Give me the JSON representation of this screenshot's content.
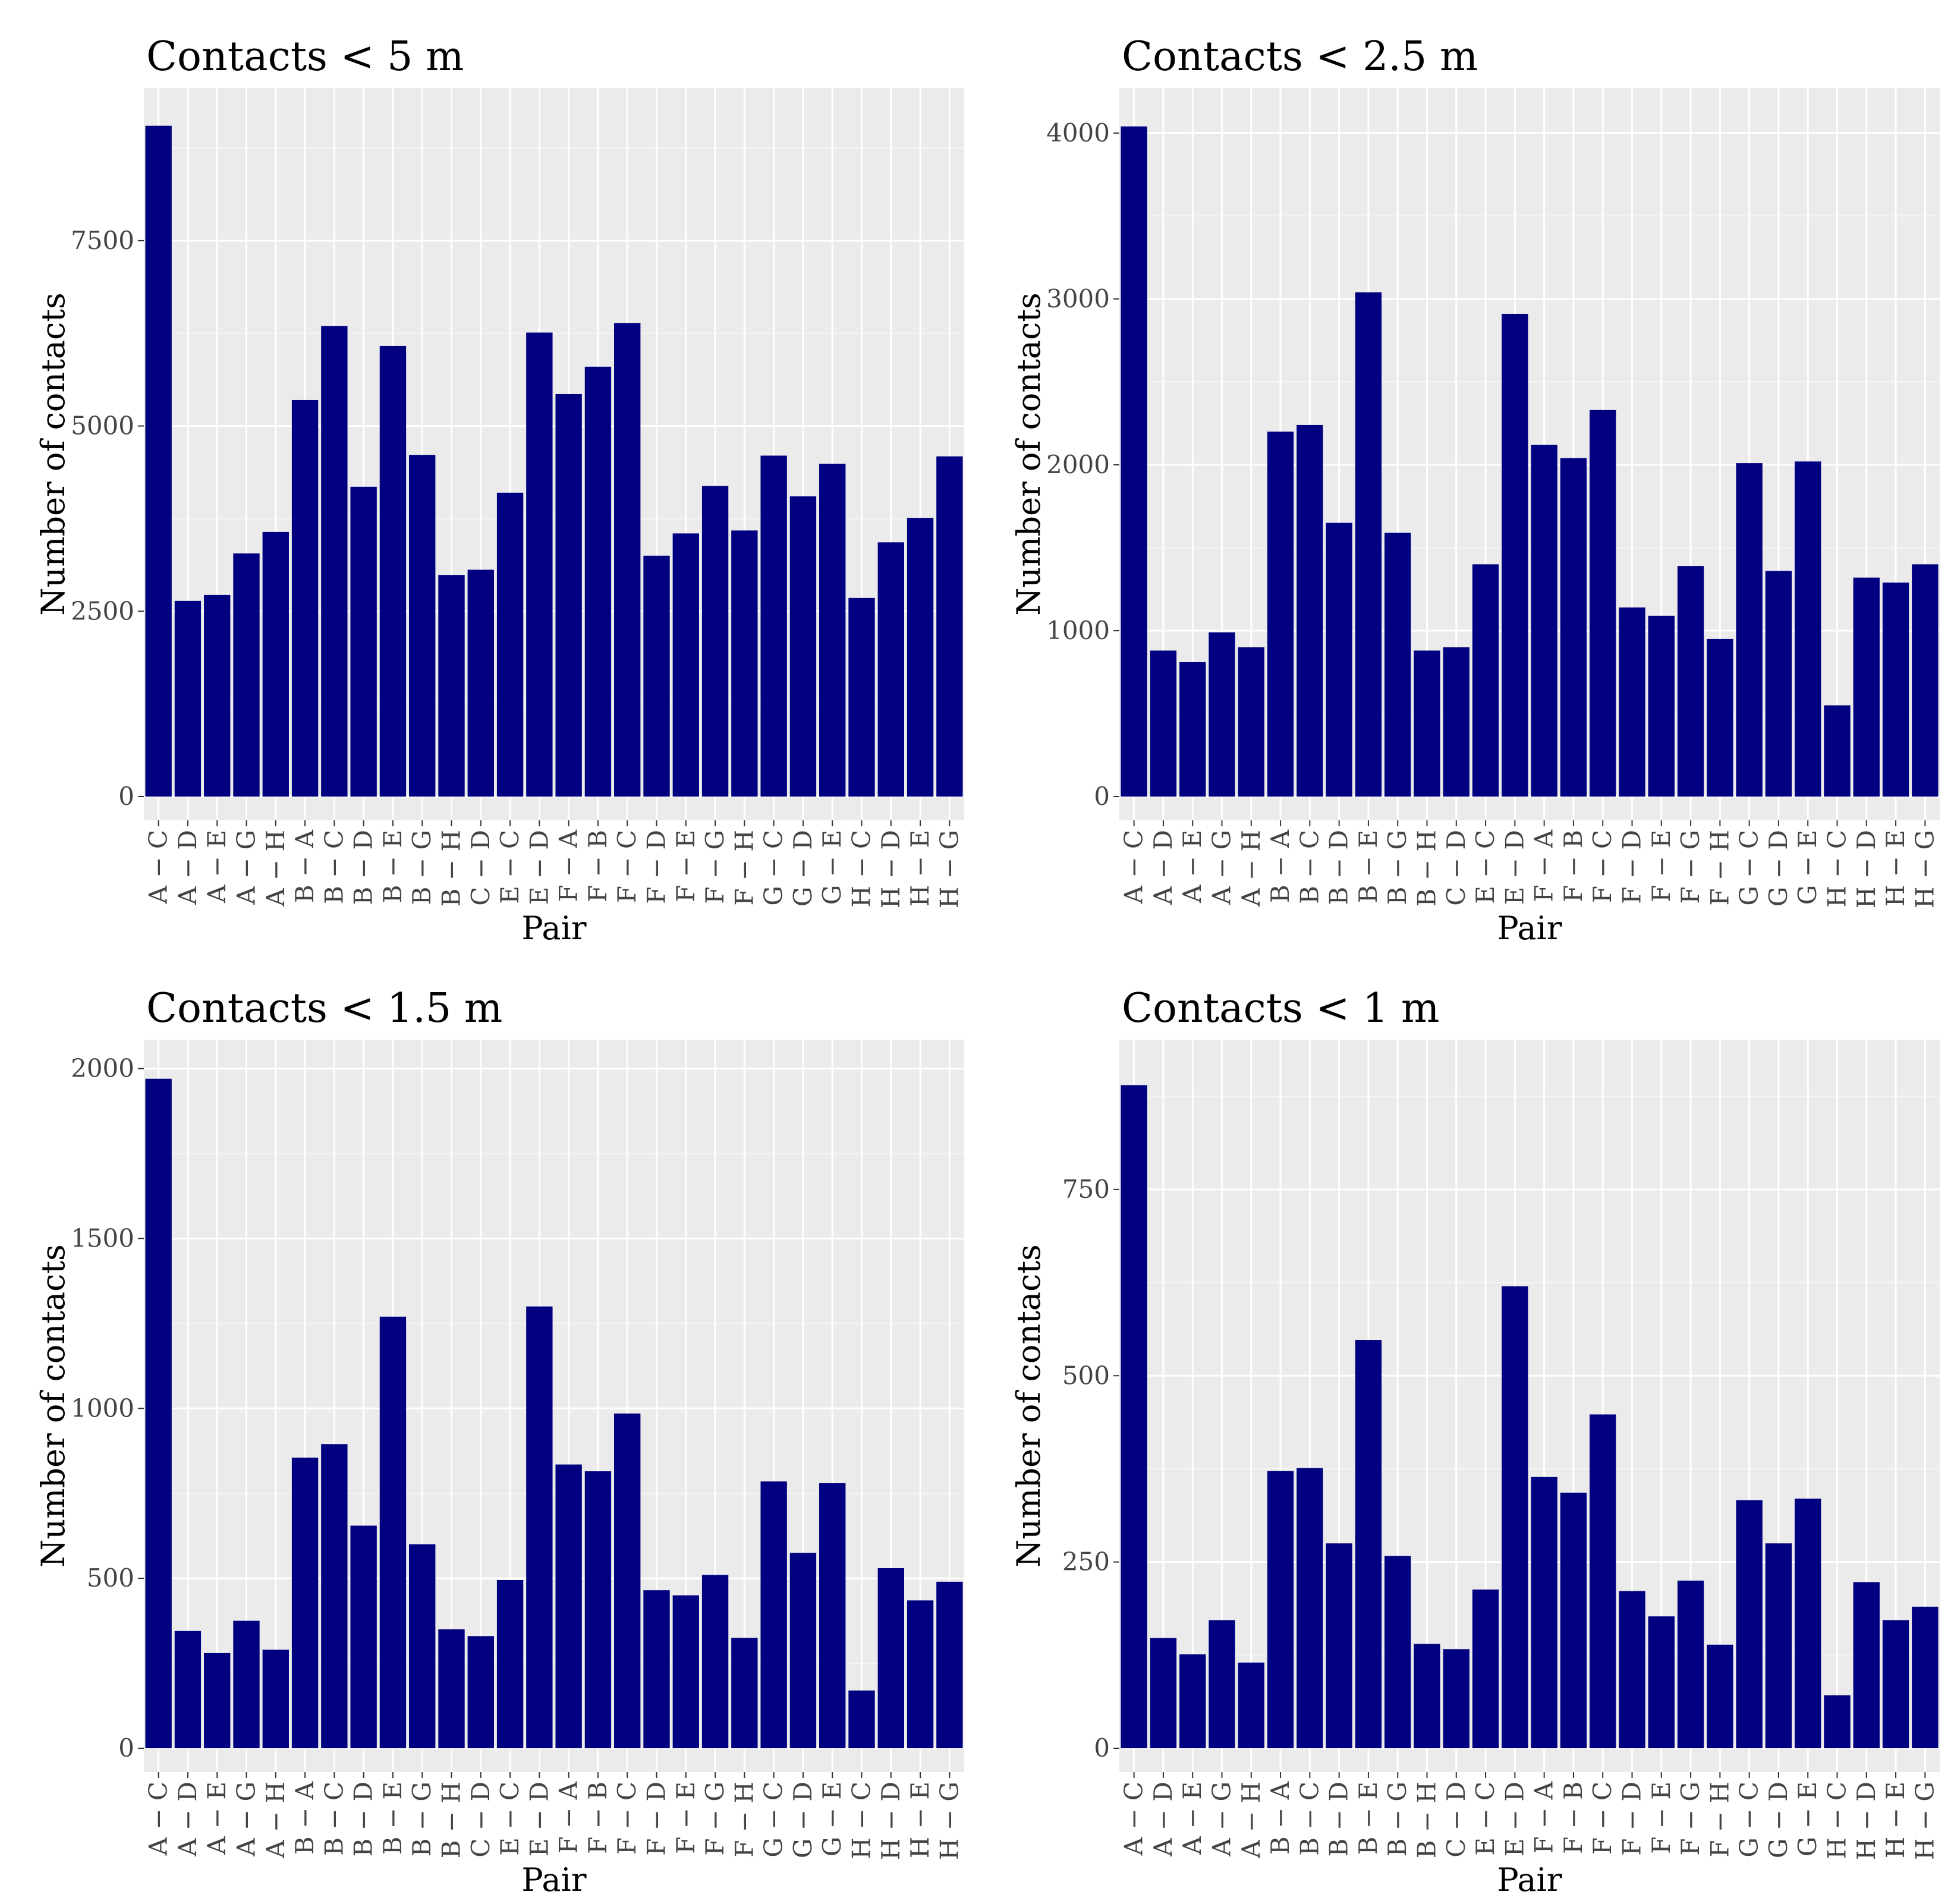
{
  "colors": {
    "bar": "#000080",
    "panel_background": "#EBEBEB",
    "grid_major": "#FFFFFF",
    "grid_minor": "#F5F5F5"
  },
  "chart_data": [
    {
      "type": "bar",
      "title": "Contacts < 5 m",
      "xlabel": "Pair",
      "ylabel": "Number of contacts",
      "ylim": [
        0,
        9400
      ],
      "yticks": [
        0,
        2500,
        5000,
        7500
      ],
      "ytick_labels": [
        "0",
        "2500",
        "5000",
        "7500"
      ],
      "categories": [
        "A − C",
        "A − D",
        "A − E",
        "A − G",
        "A − H",
        "B − A",
        "B − C",
        "B − D",
        "B − E",
        "B − G",
        "B − H",
        "C − D",
        "E − C",
        "E − D",
        "F − A",
        "F − B",
        "F − C",
        "F − D",
        "F − E",
        "F − G",
        "F − H",
        "G − C",
        "G − D",
        "G − E",
        "H − C",
        "H − D",
        "H − E",
        "H − G"
      ],
      "values": [
        9050,
        2640,
        2720,
        3280,
        3570,
        5350,
        6350,
        4180,
        6080,
        4610,
        2990,
        3060,
        4100,
        6260,
        5430,
        5800,
        6390,
        3250,
        3550,
        4190,
        3590,
        4600,
        4050,
        4490,
        2680,
        3430,
        3760,
        4590
      ]
    },
    {
      "type": "bar",
      "title": "Contacts < 2.5 m",
      "xlabel": "Pair",
      "ylabel": "Number of contacts",
      "ylim": [
        0,
        4200
      ],
      "yticks": [
        0,
        1000,
        2000,
        3000,
        4000
      ],
      "ytick_labels": [
        "0",
        "1000",
        "2000",
        "3000",
        "4000"
      ],
      "categories": [
        "A − C",
        "A − D",
        "A − E",
        "A − G",
        "A − H",
        "B − A",
        "B − C",
        "B − D",
        "B − E",
        "B − G",
        "B − H",
        "C − D",
        "E − C",
        "E − D",
        "F − A",
        "F − B",
        "F − C",
        "F − D",
        "F − E",
        "F − G",
        "F − H",
        "G − C",
        "G − D",
        "G − E",
        "H − C",
        "H − D",
        "H − E",
        "H − G"
      ],
      "values": [
        4040,
        880,
        810,
        990,
        900,
        2200,
        2240,
        1650,
        3040,
        1590,
        880,
        900,
        1400,
        2910,
        2120,
        2040,
        2330,
        1140,
        1090,
        1390,
        950,
        2010,
        1360,
        2020,
        550,
        1320,
        1290,
        1400
      ]
    },
    {
      "type": "bar",
      "title": "Contacts < 1.5 m",
      "xlabel": "Pair",
      "ylabel": "Number of contacts",
      "ylim": [
        0,
        2050
      ],
      "yticks": [
        0,
        500,
        1000,
        1500,
        2000
      ],
      "ytick_labels": [
        "0",
        "500",
        "1000",
        "1500",
        "2000"
      ],
      "categories": [
        "A − C",
        "A − D",
        "A − E",
        "A − G",
        "A − H",
        "B − A",
        "B − C",
        "B − D",
        "B − E",
        "B − G",
        "B − H",
        "C − D",
        "E − C",
        "E − D",
        "F − A",
        "F − B",
        "F − C",
        "F − D",
        "F − E",
        "F − G",
        "F − H",
        "G − C",
        "G − D",
        "G − E",
        "H − C",
        "H − D",
        "H − E",
        "H − G"
      ],
      "values": [
        1970,
        345,
        280,
        375,
        290,
        855,
        895,
        655,
        1270,
        600,
        350,
        330,
        495,
        1300,
        835,
        815,
        985,
        465,
        450,
        510,
        325,
        785,
        575,
        780,
        170,
        530,
        435,
        490
      ]
    },
    {
      "type": "bar",
      "title": "Contacts < 1 m",
      "xlabel": "Pair",
      "ylabel": "Number of contacts",
      "ylim": [
        0,
        935
      ],
      "yticks": [
        0,
        250,
        500,
        750
      ],
      "ytick_labels": [
        "0",
        "250",
        "500",
        "750"
      ],
      "categories": [
        "A − C",
        "A − D",
        "A − E",
        "A − G",
        "A − H",
        "B − A",
        "B − C",
        "B − D",
        "B − E",
        "B − G",
        "B − H",
        "C − D",
        "E − C",
        "E − D",
        "F − A",
        "F − B",
        "F − C",
        "F − D",
        "F − E",
        "F − G",
        "F − H",
        "G − C",
        "G − D",
        "G − E",
        "H − C",
        "H − D",
        "H − E",
        "H − G"
      ],
      "values": [
        890,
        148,
        126,
        172,
        115,
        372,
        376,
        275,
        548,
        258,
        140,
        133,
        213,
        620,
        364,
        343,
        448,
        211,
        177,
        225,
        139,
        333,
        275,
        335,
        71,
        223,
        172,
        190
      ]
    }
  ]
}
